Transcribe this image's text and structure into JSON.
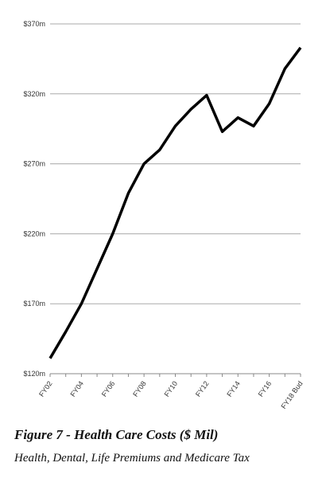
{
  "chart_data": {
    "type": "line",
    "title": "Figure 7 - Health Care Costs ($ Mil)",
    "subtitle": "Health, Dental, Life Premiums and Medicare Tax",
    "categories": [
      "FY02",
      null,
      "FY04",
      null,
      "FY06",
      null,
      "FY08",
      null,
      "FY10",
      null,
      "FY12",
      null,
      "FY14",
      null,
      "FY16",
      null,
      "FY18 Bud"
    ],
    "series": [
      {
        "name": "Health Care Costs",
        "color": "#000000",
        "values": [
          131,
          150,
          170,
          195,
          220,
          249,
          270,
          280,
          297,
          309,
          319,
          293,
          303,
          297,
          313,
          338,
          353
        ]
      }
    ],
    "ylim": [
      120,
      370
    ],
    "yticks": [
      {
        "value": 120,
        "label": "$120m"
      },
      {
        "value": 170,
        "label": "$170m"
      },
      {
        "value": 220,
        "label": "$220m"
      },
      {
        "value": 270,
        "label": "$270m"
      },
      {
        "value": 320,
        "label": "$320m"
      },
      {
        "value": 370,
        "label": "$370m"
      }
    ],
    "grid": true
  }
}
